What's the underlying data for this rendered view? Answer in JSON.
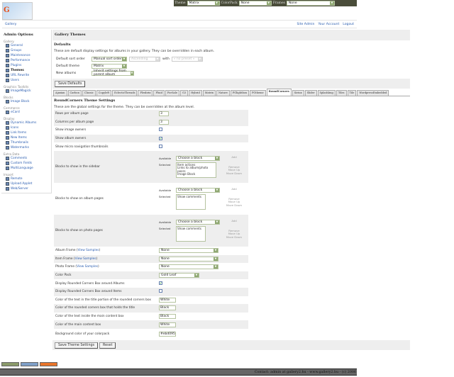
{
  "topbar": {
    "theme_label": "Theme",
    "theme_value": "Matrix",
    "colorpack_label": "ColorPack",
    "colorpack_value": "None",
    "frames_label": "Frames",
    "frames_value": "None"
  },
  "logo_text": "Gallery",
  "breadcrumb": {
    "home": "Gallery",
    "links": [
      "Site Admin",
      "Your Account",
      "Logout"
    ]
  },
  "sidebar": {
    "title": "Admin Options",
    "groups": [
      {
        "label": "Gallery",
        "items": [
          "General",
          "Groups",
          "Maintenance",
          "Performance",
          "Plugins",
          "Themes",
          "URL Rewrite",
          "Users"
        ]
      },
      {
        "label": "Graphics Toolkits",
        "items": [
          "ImageMagick"
        ]
      },
      {
        "label": "Blocks",
        "items": [
          "Image Block"
        ]
      },
      {
        "label": "Commerce",
        "items": [
          "eCard"
        ]
      },
      {
        "label": "Display",
        "items": [
          "Dynamic Albums",
          "Icons",
          "Link Items",
          "New Items",
          "Thumbnails",
          "Watermarks"
        ]
      },
      {
        "label": "Extra Data",
        "items": [
          "Comments",
          "Custom Fields",
          "MultiLanguage"
        ]
      },
      {
        "label": "Import",
        "items": [
          "Remote",
          "Upload Applet",
          "Web/Server"
        ]
      }
    ],
    "current": "Themes"
  },
  "main": {
    "title": "Gallery Themes",
    "defaults": {
      "heading": "Defaults",
      "description": "These are default display settings for albums in your gallery. They can be overridden in each album.",
      "sort_label": "Default sort order",
      "sort_value": "Manual sort order",
      "direction_value": "Ascending",
      "with_label": "with",
      "preset_value": "« no preset »",
      "theme_label": "Default theme",
      "theme_value": "Matrix",
      "new_albums_label": "New albums",
      "new_albums_value": "Inherit settings from parent album",
      "save_label": "Save Defaults"
    },
    "tabs": [
      "Ajaxian",
      "Carbon",
      "Classic",
      "Copyleft",
      "EclecticThreads",
      "Flexbrix",
      "Fluid",
      "ForSale",
      "G3",
      "Hybrid",
      "Matrix",
      "Nature",
      "PGlightbox",
      "PGtheme",
      "RoundCorners",
      "Siriux",
      "Slider",
      "SplashImg",
      "Tiles",
      "Tile",
      "WordpressEmbedded"
    ],
    "active_tab": "RoundCorners",
    "theme": {
      "heading": "RoundCorners Theme Settings",
      "description": "These are the global settings for the theme. They can be overridden at the album level.",
      "rows_label": "Rows per album page",
      "rows_value": "3",
      "cols_label": "Columns per album page",
      "cols_value": "3",
      "image_owners_label": "Show image owners",
      "image_owners": false,
      "album_owners_label": "Show album owners",
      "album_owners": true,
      "micro_label": "Show micro navigation thumbnails",
      "micro": false,
      "available_label": "Available",
      "selected_label": "Selected",
      "choose_block": "Choose a block",
      "add": "Add",
      "remove": "Remove",
      "move_up": "Move Up",
      "move_down": "Move Down",
      "sidebar_blocks_label": "Blocks to show in the sidebar",
      "sidebar_blocks": "Item actions\nLinks to album/photo peers\nImage Block",
      "album_blocks_label": "Blocks to show on album pages",
      "album_blocks": "Show comments",
      "photo_blocks_label": "Blocks to show on photo pages",
      "photo_blocks": "Show comments",
      "view_samples": "View Samples",
      "album_frame_label": "Album Frame",
      "album_frame": "None",
      "item_frame_label": "Item Frame",
      "item_frame": "None",
      "photo_frame_label": "Photo Frame",
      "photo_frame": "None",
      "color_pack_label": "Color Pack",
      "color_pack": "Gold Leaf",
      "box_albums_label": "Display Rounded Corners Box around Albums",
      "box_albums": true,
      "box_items_label": "Display Rounded Corners Box around Items",
      "box_items": false,
      "title_text_color_label": "Color of the text in the title portion of the rounded corners box",
      "title_text_color": "White",
      "title_box_color_label": "Color of the rounded corners box that holds the title",
      "title_box_color": "Black",
      "main_text_color_label": "Color of the text inside the main content box",
      "main_text_color": "Black",
      "main_box_color_label": "Color of the main content box",
      "main_box_color": "White",
      "bg_color_label": "Background color of your colorpack",
      "bg_color": "#ebd095",
      "save_label": "Save Theme Settings",
      "reset_label": "Reset"
    }
  },
  "footer": "Contact: admin at gallery2.hu - www.gallery2.hu - (c) 2006"
}
